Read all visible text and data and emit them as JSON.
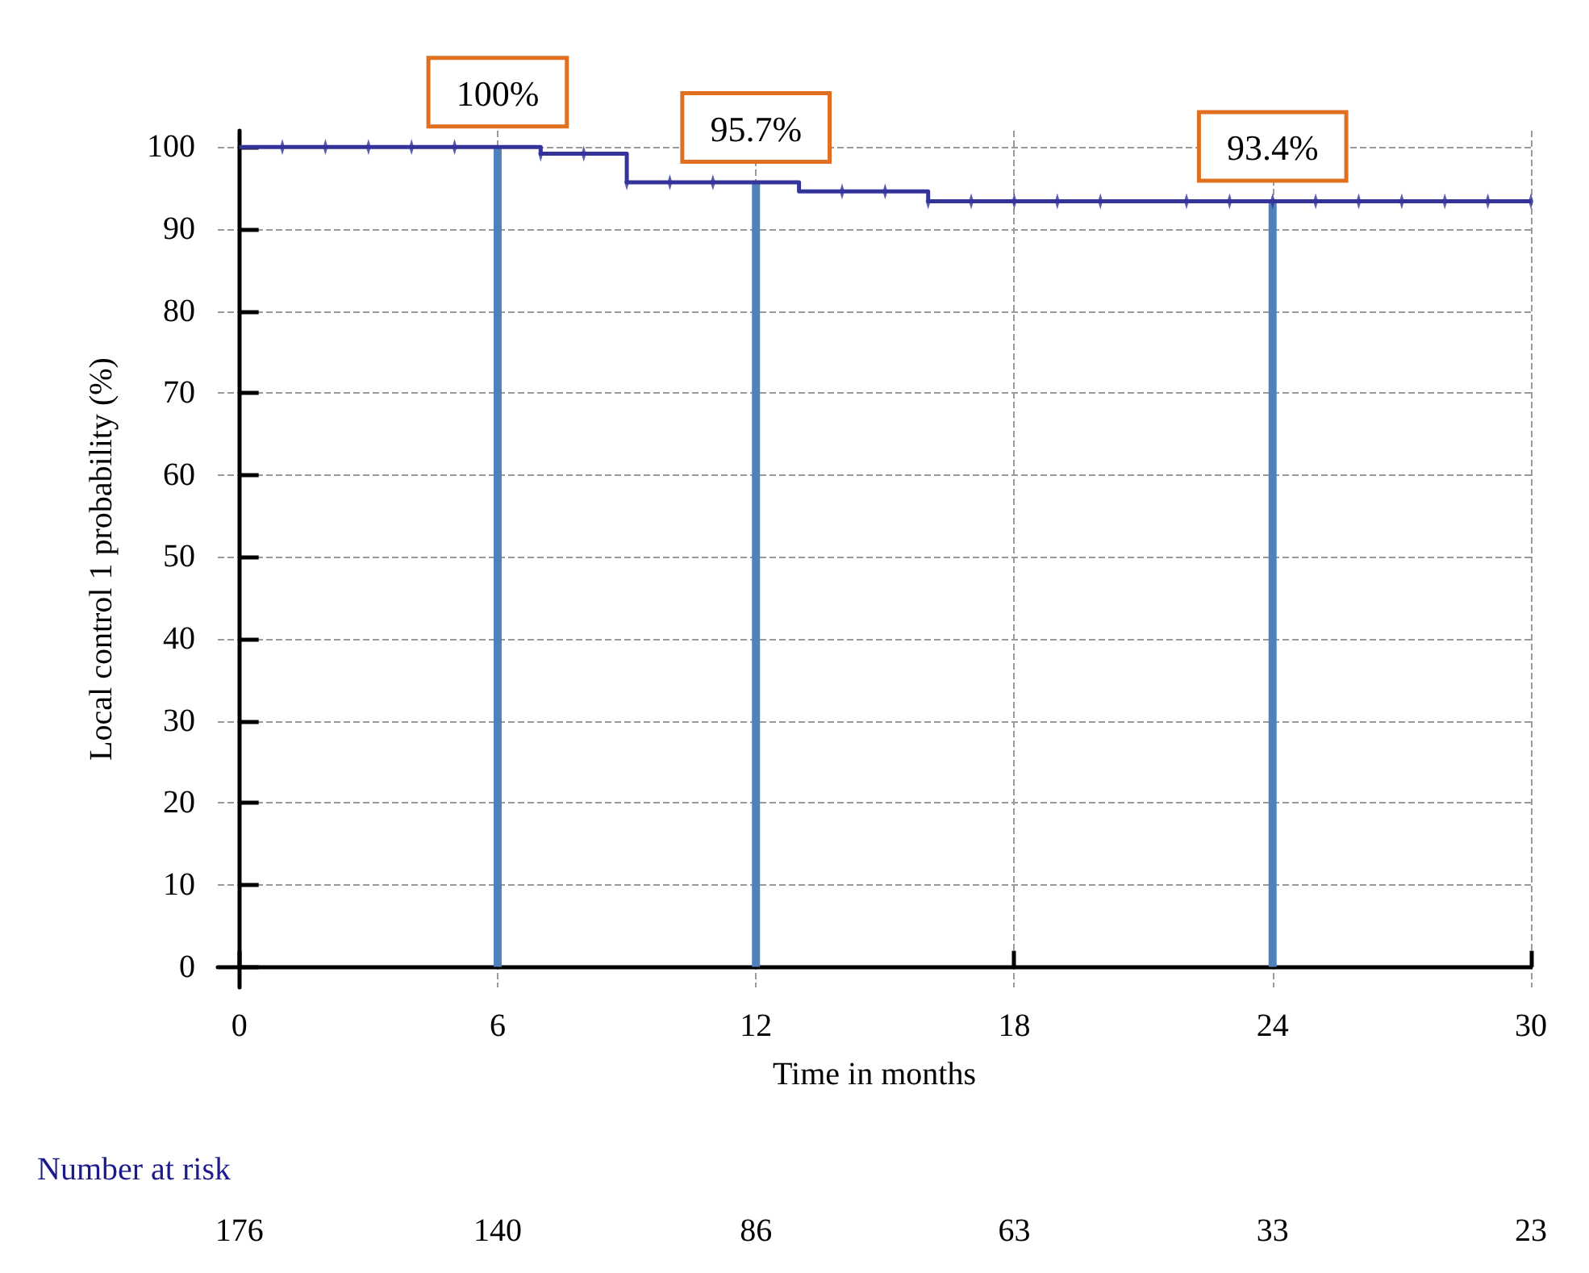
{
  "chart_data": {
    "type": "step",
    "xlabel": "Time in months",
    "ylabel": "Local control 1 probability (%)",
    "xlim": [
      -0.5,
      30
    ],
    "xticks": [
      0,
      6,
      12,
      18,
      24,
      30
    ],
    "ylim": [
      -2.5,
      102
    ],
    "yticks": [
      0,
      10,
      20,
      30,
      40,
      50,
      60,
      70,
      80,
      90,
      100
    ],
    "grid": true,
    "line_style": "solid",
    "series": [
      {
        "color": "#33339a",
        "x": [
          0,
          7,
          9,
          13,
          16,
          30
        ],
        "values": [
          100,
          99.2,
          95.7,
          94.6,
          93.4,
          93.4
        ]
      },
      {
        "type": "scatter",
        "color": "#33339a",
        "x": [
          1,
          2,
          3,
          4,
          5,
          7,
          8,
          9,
          10,
          11,
          14,
          15,
          16,
          17,
          18,
          19,
          20,
          22,
          23,
          24,
          25,
          26,
          27,
          28,
          29,
          30
        ],
        "values": [
          100,
          100,
          100,
          100,
          100,
          99.2,
          99.2,
          95.7,
          95.7,
          95.7,
          94.6,
          94.6,
          93.4,
          93.4,
          93.4,
          93.4,
          93.4,
          93.4,
          93.4,
          93.4,
          93.4,
          93.4,
          93.4,
          93.4,
          93.4,
          93.4
        ]
      },
      {
        "type": "bar",
        "color": "#4f81bd",
        "x": [
          6,
          12,
          24
        ],
        "values": [
          100,
          95.7,
          93.4
        ],
        "value_labels": [
          "100%",
          "95.7%",
          "93.4%"
        ]
      }
    ],
    "annotations": [
      "Number at risk",
      "176",
      "140",
      "86",
      "63",
      "33",
      "23"
    ]
  }
}
